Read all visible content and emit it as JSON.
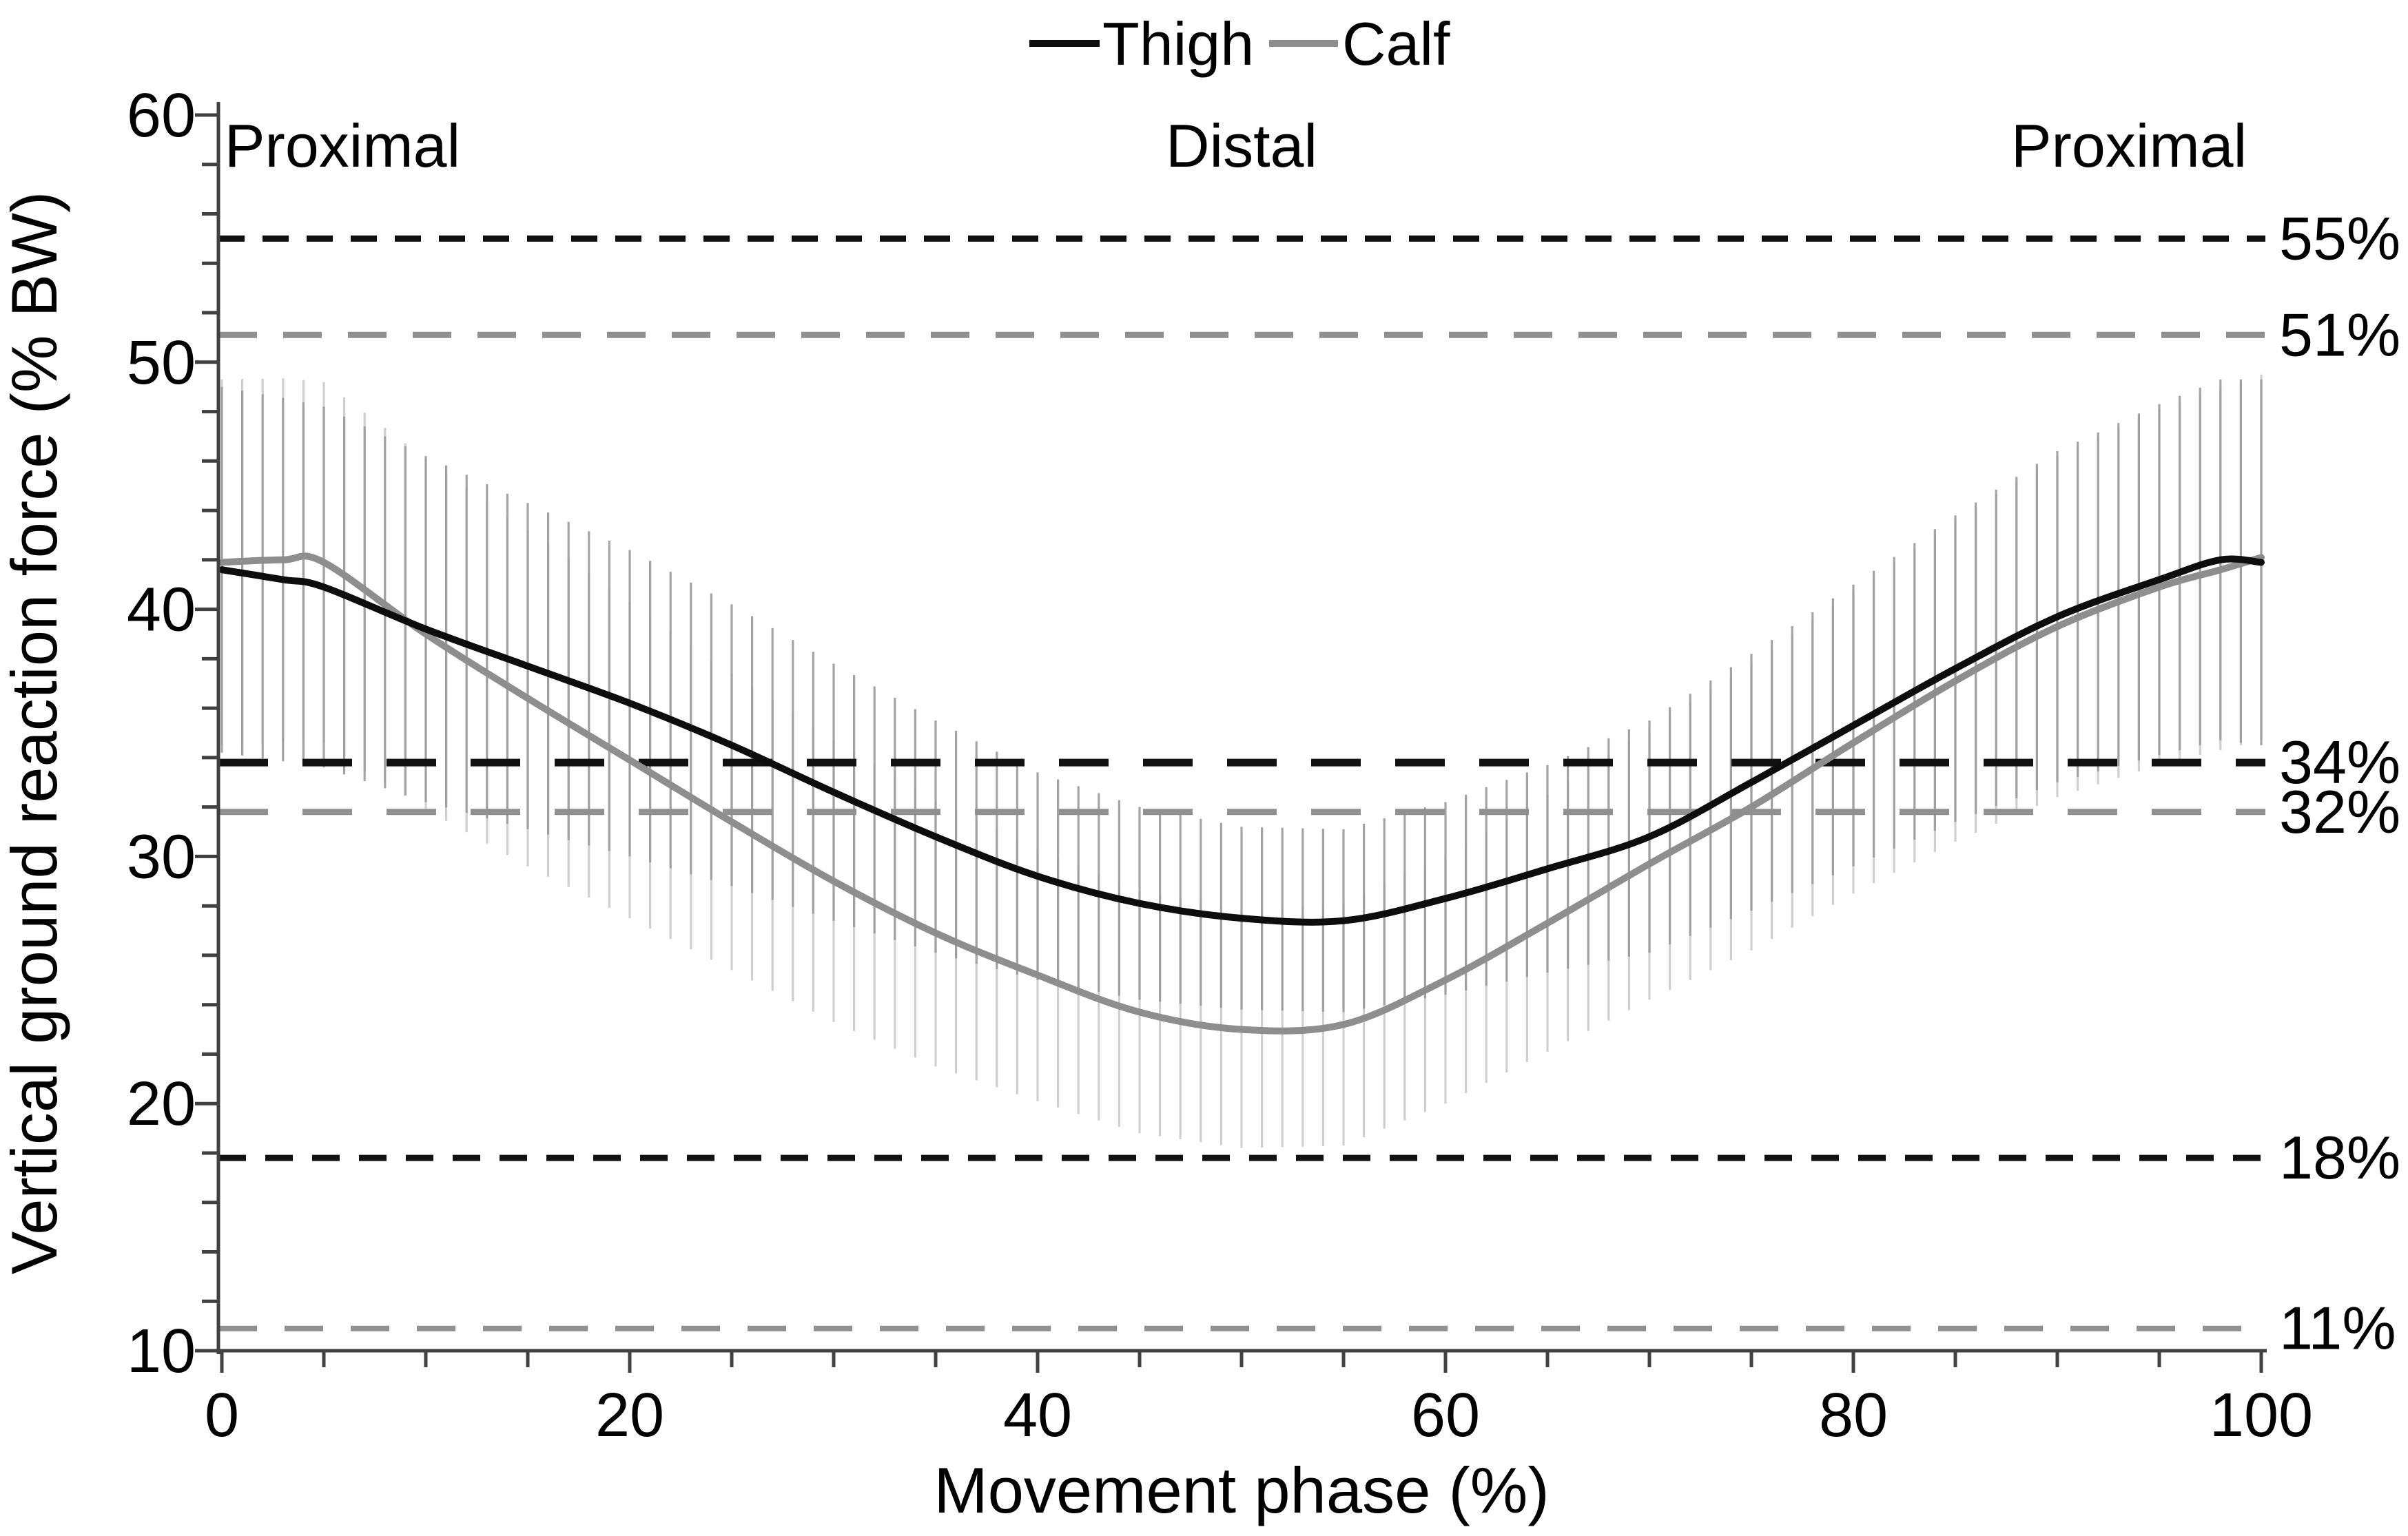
{
  "chart_data": {
    "type": "line",
    "title": "",
    "xlabel": "Movement phase (%)",
    "ylabel": "Vertical ground reaction force (% BW)",
    "xlim": [
      0,
      100
    ],
    "ylim": [
      10,
      60
    ],
    "grid": "off",
    "legend_position": "top-center",
    "x_major_tick_labels": [
      0,
      20,
      40,
      60,
      80,
      100
    ],
    "x_minor_tick_step": 5,
    "y_major_tick_labels": [
      60,
      50,
      40,
      30,
      20,
      10
    ],
    "y_minor_tick_step": 2,
    "region_labels": [
      {
        "text": "Proximal",
        "phase": 6
      },
      {
        "text": "Distal",
        "phase": 50
      },
      {
        "text": "Proximal",
        "phase": 93.5
      }
    ],
    "x": [
      0,
      3,
      5,
      10,
      15,
      20,
      25,
      30,
      35,
      40,
      45,
      50,
      55,
      60,
      65,
      70,
      75,
      80,
      85,
      90,
      95,
      98,
      100
    ],
    "series": [
      {
        "name": "Thigh",
        "color": "#0d0d0d",
        "error_bar_color": "#9b9b9b",
        "values": [
          41.6,
          41.2,
          40.9,
          39.2,
          37.7,
          36.2,
          34.5,
          32.6,
          30.8,
          29.2,
          28.1,
          27.5,
          27.4,
          28.3,
          29.5,
          30.8,
          33.0,
          35.3,
          37.6,
          39.7,
          41.2,
          42.0,
          41.9
        ],
        "sd": [
          7.4,
          7.35,
          7.3,
          7.0,
          6.6,
          6.2,
          5.7,
          5.2,
          4.7,
          4.2,
          3.9,
          3.7,
          3.7,
          3.9,
          4.2,
          4.7,
          5.2,
          5.7,
          6.2,
          6.7,
          7.1,
          7.3,
          7.4
        ]
      },
      {
        "name": "Calf",
        "color": "#8e8e8e",
        "error_bar_color": "#cccccc",
        "values": [
          41.9,
          42.0,
          41.9,
          39.0,
          36.4,
          33.9,
          31.4,
          29.0,
          26.9,
          25.2,
          23.7,
          23.0,
          23.2,
          25.0,
          27.3,
          29.7,
          32.0,
          34.6,
          37.1,
          39.3,
          40.9,
          41.6,
          42.1
        ],
        "sd": [
          7.4,
          7.35,
          7.3,
          7.1,
          6.8,
          6.4,
          6.0,
          5.7,
          5.4,
          5.1,
          4.9,
          4.8,
          4.9,
          5.0,
          5.2,
          5.5,
          5.8,
          6.1,
          6.5,
          6.9,
          7.2,
          7.3,
          7.4
        ]
      }
    ],
    "reference_lines": [
      {
        "label": "55%",
        "value": 55.0,
        "color": "#111111",
        "dash": "38 26",
        "width": 9
      },
      {
        "label": "51%",
        "value": 51.1,
        "color": "#909090",
        "dash": "56 38",
        "width": 9
      },
      {
        "label": "34%",
        "value": 33.8,
        "color": "#111111",
        "dash": "72 50",
        "width": 11
      },
      {
        "label": "32%",
        "value": 31.8,
        "color": "#909090",
        "dash": "72 50",
        "width": 9
      },
      {
        "label": "18%",
        "value": 17.8,
        "color": "#111111",
        "dash": "40 28",
        "width": 9
      },
      {
        "label": "11%",
        "value": 10.9,
        "color": "#909090",
        "dash": "56 40",
        "width": 8
      }
    ],
    "legend": [
      {
        "label": "Thigh",
        "color": "#0d0d0d"
      },
      {
        "label": "Calf",
        "color": "#8e8e8e"
      }
    ],
    "axis_color": "#404040"
  }
}
